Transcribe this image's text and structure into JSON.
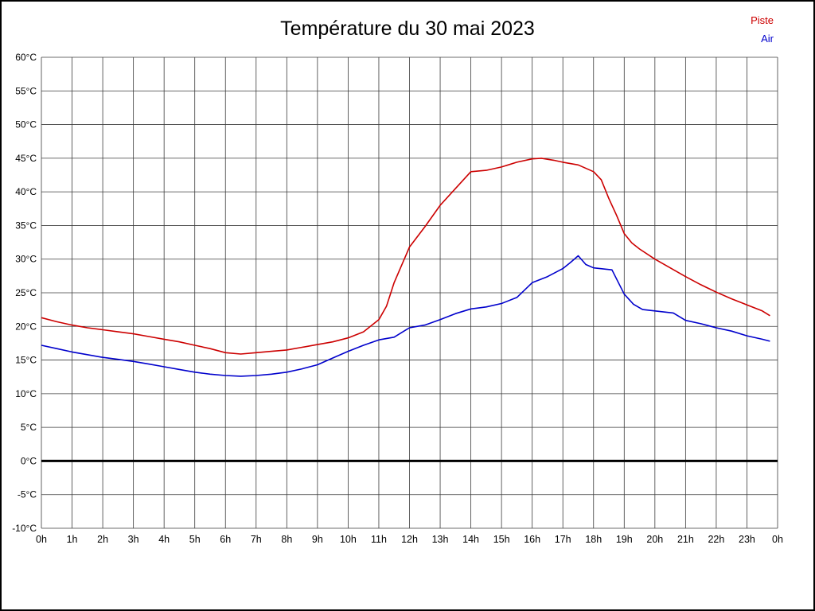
{
  "title": "Température du 30 mai 2023",
  "legend": [
    {
      "label": "Piste",
      "color": "#cc0000"
    },
    {
      "label": "Air",
      "color": "#0000cc"
    }
  ],
  "chart_data": {
    "type": "line",
    "title": "Température du 30 mai 2023",
    "xlabel": "",
    "ylabel": "",
    "xlim": [
      0,
      24
    ],
    "ylim": [
      -10,
      60
    ],
    "grid": true,
    "legend_position": "top-right",
    "x_tick_labels": [
      "0h",
      "1h",
      "2h",
      "3h",
      "4h",
      "5h",
      "6h",
      "7h",
      "8h",
      "9h",
      "10h",
      "11h",
      "12h",
      "13h",
      "14h",
      "15h",
      "16h",
      "17h",
      "18h",
      "19h",
      "20h",
      "21h",
      "22h",
      "23h",
      "0h"
    ],
    "y_ticks": [
      60,
      55,
      50,
      45,
      40,
      35,
      30,
      25,
      20,
      15,
      10,
      5,
      0,
      -5,
      -10
    ],
    "y_tick_labels": [
      "60°C",
      "55°C",
      "50°C",
      "45°C",
      "40°C",
      "35°C",
      "30°C",
      "25°C",
      "20°C",
      "15°C",
      "10°C",
      "5°C",
      "0°C",
      "-5°C",
      "-10°C"
    ],
    "zero_line": {
      "value": 0,
      "color": "#000000",
      "width": 3
    },
    "gridline_color": "#3c3c3c",
    "series": [
      {
        "name": "Piste",
        "color": "#cc0000",
        "points": [
          [
            0,
            21.3
          ],
          [
            0.5,
            20.7
          ],
          [
            1,
            20.2
          ],
          [
            1.5,
            19.8
          ],
          [
            2,
            19.5
          ],
          [
            2.5,
            19.2
          ],
          [
            3,
            18.9
          ],
          [
            3.5,
            18.5
          ],
          [
            4,
            18.1
          ],
          [
            4.5,
            17.7
          ],
          [
            5,
            17.2
          ],
          [
            5.5,
            16.7
          ],
          [
            6,
            16.1
          ],
          [
            6.5,
            15.9
          ],
          [
            7,
            16.1
          ],
          [
            7.5,
            16.3
          ],
          [
            8,
            16.5
          ],
          [
            8.5,
            16.9
          ],
          [
            9,
            17.3
          ],
          [
            9.5,
            17.7
          ],
          [
            10,
            18.3
          ],
          [
            10.5,
            19.2
          ],
          [
            11,
            21.0
          ],
          [
            11.25,
            23.0
          ],
          [
            11.5,
            26.5
          ],
          [
            12,
            31.8
          ],
          [
            12.5,
            34.8
          ],
          [
            13,
            38.0
          ],
          [
            13.5,
            40.5
          ],
          [
            14,
            43.0
          ],
          [
            14.5,
            43.2
          ],
          [
            15,
            43.7
          ],
          [
            15.5,
            44.4
          ],
          [
            16,
            44.9
          ],
          [
            16.3,
            45.0
          ],
          [
            16.7,
            44.7
          ],
          [
            17,
            44.4
          ],
          [
            17.5,
            44.0
          ],
          [
            18,
            43.0
          ],
          [
            18.25,
            41.8
          ],
          [
            18.5,
            39.0
          ],
          [
            18.75,
            36.5
          ],
          [
            19,
            33.8
          ],
          [
            19.25,
            32.4
          ],
          [
            19.5,
            31.5
          ],
          [
            20,
            30.0
          ],
          [
            20.5,
            28.7
          ],
          [
            21,
            27.4
          ],
          [
            21.5,
            26.2
          ],
          [
            22,
            25.1
          ],
          [
            22.5,
            24.1
          ],
          [
            23,
            23.2
          ],
          [
            23.5,
            22.3
          ],
          [
            23.75,
            21.6
          ]
        ]
      },
      {
        "name": "Air",
        "color": "#0000cc",
        "points": [
          [
            0,
            17.2
          ],
          [
            0.5,
            16.7
          ],
          [
            1,
            16.2
          ],
          [
            1.5,
            15.8
          ],
          [
            2,
            15.4
          ],
          [
            2.5,
            15.1
          ],
          [
            3,
            14.8
          ],
          [
            3.5,
            14.4
          ],
          [
            4,
            14.0
          ],
          [
            4.5,
            13.6
          ],
          [
            5,
            13.2
          ],
          [
            5.5,
            12.9
          ],
          [
            6,
            12.7
          ],
          [
            6.5,
            12.6
          ],
          [
            7,
            12.7
          ],
          [
            7.5,
            12.9
          ],
          [
            8,
            13.2
          ],
          [
            8.5,
            13.7
          ],
          [
            9,
            14.3
          ],
          [
            9.5,
            15.3
          ],
          [
            10,
            16.3
          ],
          [
            10.5,
            17.2
          ],
          [
            11,
            18.0
          ],
          [
            11.5,
            18.4
          ],
          [
            12,
            19.8
          ],
          [
            12.5,
            20.2
          ],
          [
            13,
            21.0
          ],
          [
            13.5,
            21.9
          ],
          [
            14,
            22.6
          ],
          [
            14.5,
            22.9
          ],
          [
            15,
            23.4
          ],
          [
            15.5,
            24.3
          ],
          [
            16,
            26.5
          ],
          [
            16.5,
            27.4
          ],
          [
            17,
            28.6
          ],
          [
            17.25,
            29.5
          ],
          [
            17.5,
            30.5
          ],
          [
            17.75,
            29.2
          ],
          [
            18,
            28.7
          ],
          [
            18.6,
            28.4
          ],
          [
            19,
            24.8
          ],
          [
            19.3,
            23.3
          ],
          [
            19.6,
            22.5
          ],
          [
            20,
            22.3
          ],
          [
            20.6,
            22.0
          ],
          [
            21,
            20.9
          ],
          [
            21.5,
            20.4
          ],
          [
            22,
            19.8
          ],
          [
            22.5,
            19.3
          ],
          [
            23,
            18.6
          ],
          [
            23.5,
            18.1
          ],
          [
            23.75,
            17.8
          ]
        ]
      }
    ]
  }
}
